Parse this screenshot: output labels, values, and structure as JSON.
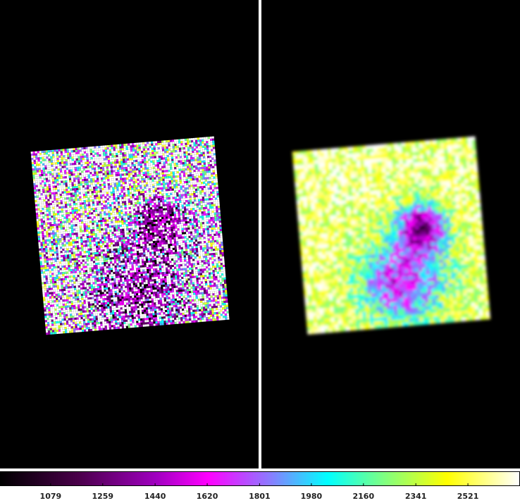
{
  "colorbar": {
    "lim": [
      904,
      2701
    ],
    "ticks": [
      1079,
      1259,
      1440,
      1620,
      1801,
      1980,
      2160,
      2341,
      2521
    ]
  }
}
